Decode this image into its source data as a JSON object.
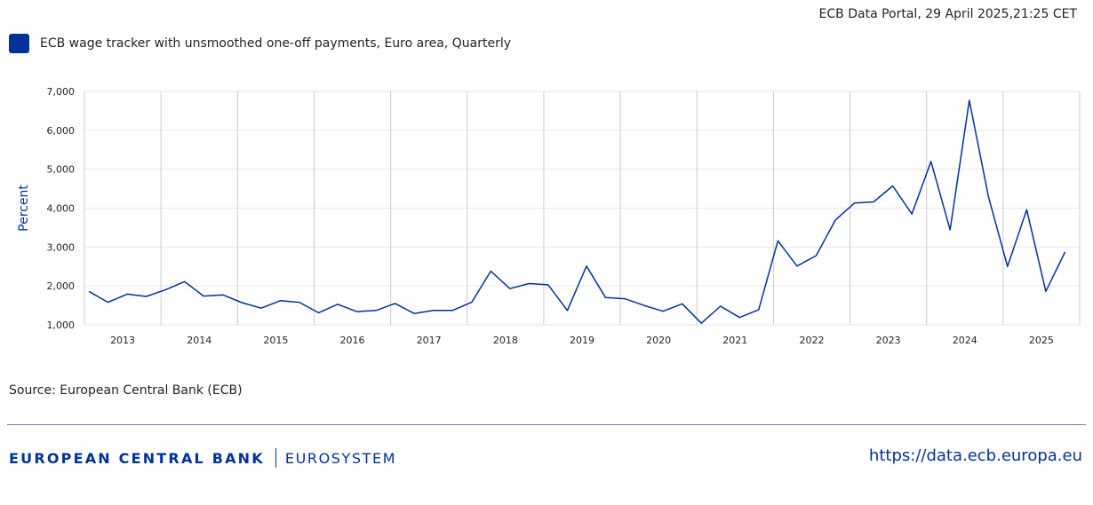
{
  "header": {
    "stamp": "ECB Data Portal, 29 April 2025,21:25 CET"
  },
  "legend": {
    "label": "ECB wage tracker with unsmoothed one-off payments, Euro area, Quarterly",
    "color": "#003299"
  },
  "source": "Source: European Central Bank (ECB)",
  "footer": {
    "bank_name": "EUROPEAN CENTRAL BANK",
    "eurosystem": "EUROSYSTEM",
    "url": "https://data.ecb.europa.eu"
  },
  "chart_data": {
    "type": "line",
    "title": "",
    "xlabel": "",
    "ylabel": "Percent",
    "ylim": [
      1,
      7
    ],
    "yticks": [
      1,
      2,
      3,
      4,
      5,
      6,
      7
    ],
    "ytick_labels": [
      "1,000",
      "2,000",
      "3,000",
      "4,000",
      "5,000",
      "6,000",
      "7,000"
    ],
    "year_labels": [
      "2013",
      "2014",
      "2015",
      "2016",
      "2017",
      "2018",
      "2019",
      "2020",
      "2021",
      "2022",
      "2023",
      "2024",
      "2025"
    ],
    "grid": true,
    "line_color": "#003299",
    "series": [
      {
        "name": "ECB wage tracker with unsmoothed one-off payments, Euro area, Quarterly",
        "x": [
          "2013Q1",
          "2013Q2",
          "2013Q3",
          "2013Q4",
          "2014Q1",
          "2014Q2",
          "2014Q3",
          "2014Q4",
          "2015Q1",
          "2015Q2",
          "2015Q3",
          "2015Q4",
          "2016Q1",
          "2016Q2",
          "2016Q3",
          "2016Q4",
          "2017Q1",
          "2017Q2",
          "2017Q3",
          "2017Q4",
          "2018Q1",
          "2018Q2",
          "2018Q3",
          "2018Q4",
          "2019Q1",
          "2019Q2",
          "2019Q3",
          "2019Q4",
          "2020Q1",
          "2020Q2",
          "2020Q3",
          "2020Q4",
          "2021Q1",
          "2021Q2",
          "2021Q3",
          "2021Q4",
          "2022Q1",
          "2022Q2",
          "2022Q3",
          "2022Q4",
          "2023Q1",
          "2023Q2",
          "2023Q3",
          "2023Q4",
          "2024Q1",
          "2024Q2",
          "2024Q3",
          "2024Q4",
          "2025Q1",
          "2025Q2",
          "2025Q3",
          "2025Q4"
        ],
        "values": [
          1.86,
          1.58,
          1.79,
          1.73,
          1.9,
          2.11,
          1.74,
          1.77,
          1.57,
          1.43,
          1.62,
          1.58,
          1.31,
          1.53,
          1.34,
          1.37,
          1.55,
          1.29,
          1.37,
          1.37,
          1.58,
          2.38,
          1.93,
          2.06,
          2.03,
          1.37,
          2.51,
          1.7,
          1.67,
          1.5,
          1.35,
          1.54,
          1.04,
          1.48,
          1.19,
          1.39,
          3.16,
          2.51,
          2.78,
          3.69,
          4.13,
          4.16,
          4.57,
          3.85,
          5.2,
          3.44,
          6.77,
          4.3,
          2.5,
          3.96,
          1.86,
          2.87
        ]
      }
    ]
  }
}
